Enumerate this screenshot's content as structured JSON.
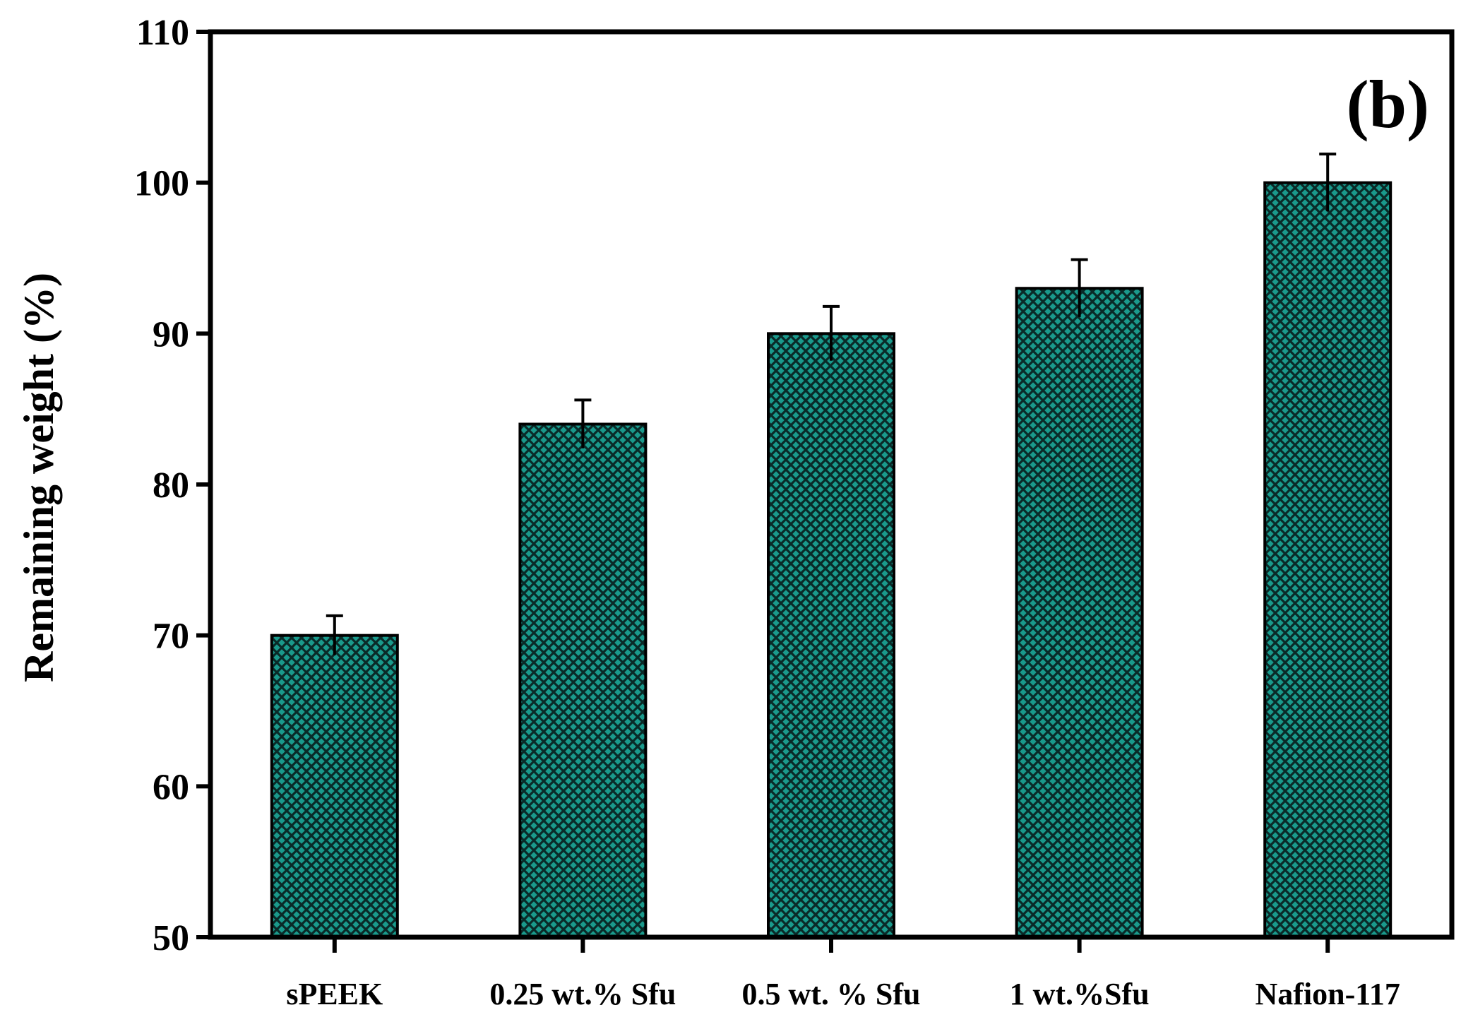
{
  "chart_data": {
    "type": "bar",
    "panel_label": "(b)",
    "ylabel": "Remaining weight (%)",
    "xlabel": "",
    "categories": [
      "sPEEK",
      "0.25 wt.% Sfu",
      "0.5 wt. % Sfu",
      "1 wt.%Sfu",
      "Nafion-117"
    ],
    "values": [
      70,
      84,
      90,
      93,
      100
    ],
    "errors": [
      1.3,
      1.6,
      1.8,
      1.9,
      1.9
    ],
    "ylim": [
      50,
      110
    ],
    "yticks": [
      50,
      60,
      70,
      80,
      90,
      100,
      110
    ],
    "grid": false,
    "bar_color": "#1a9a8c",
    "hatch_color": "#0a2a28"
  }
}
